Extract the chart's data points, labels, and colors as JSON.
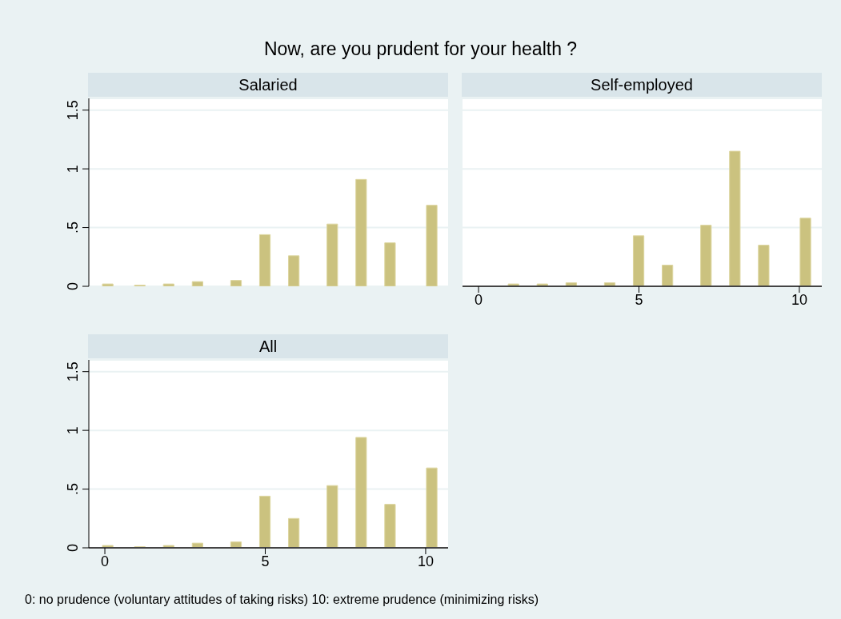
{
  "chart_data": [
    {
      "type": "bar",
      "title": "Now, are you prudent for your health ?",
      "subtitle": "Salaried",
      "x": [
        0.1,
        1.1,
        2,
        2.9,
        4.1,
        5,
        5.9,
        7.1,
        8,
        8.9,
        10.2
      ],
      "values": [
        0.02,
        0.01,
        0.02,
        0.04,
        0.05,
        0.44,
        0.26,
        0.53,
        0.91,
        0.37,
        0.69
      ],
      "color": "#cbc27f",
      "xlim": [
        -0.5,
        10.7
      ],
      "xticks": [
        0,
        5,
        10
      ],
      "ylim": [
        0,
        1.6
      ],
      "yticks": [
        0,
        {
          "value": 0.5,
          "label": ".5"
        },
        1,
        1.5
      ],
      "grid": "y",
      "tick_labels": "y"
    },
    {
      "type": "bar",
      "title": "Self-employed",
      "x": [
        0.1,
        1.1,
        2,
        2.9,
        4.1,
        5,
        5.9,
        7.1,
        8,
        8.9,
        10.2
      ],
      "values": [
        0,
        0.02,
        0.02,
        0.03,
        0.03,
        0.43,
        0.18,
        0.52,
        1.15,
        0.35,
        0.58
      ],
      "color": "#cbc27f",
      "xlim": [
        -0.5,
        10.7
      ],
      "xticks": [
        0,
        5,
        10
      ],
      "ylim": [
        0,
        1.6
      ],
      "yticks": [
        0,
        0.5,
        1,
        1.5
      ],
      "grid": "y",
      "tick_labels": "x"
    },
    {
      "type": "bar",
      "title": "All",
      "xlabel": "0: no prudence (voluntary attitudes of taking risks) 10: extreme prudence (minimizing risks)",
      "x": [
        0.1,
        1.1,
        2,
        2.9,
        4.1,
        5,
        5.9,
        7.1,
        8,
        8.9,
        10.2
      ],
      "values": [
        0.02,
        0.01,
        0.02,
        0.04,
        0.05,
        0.44,
        0.25,
        0.53,
        0.94,
        0.37,
        0.68
      ],
      "color": "#cbc27f",
      "xlim": [
        -0.5,
        10.7
      ],
      "xticks": [
        0,
        5,
        10
      ],
      "ylim": [
        0,
        1.6
      ],
      "yticks": [
        0,
        {
          "value": 0.5,
          "label": ".5"
        },
        1,
        1.5
      ],
      "grid": "y"
    }
  ]
}
